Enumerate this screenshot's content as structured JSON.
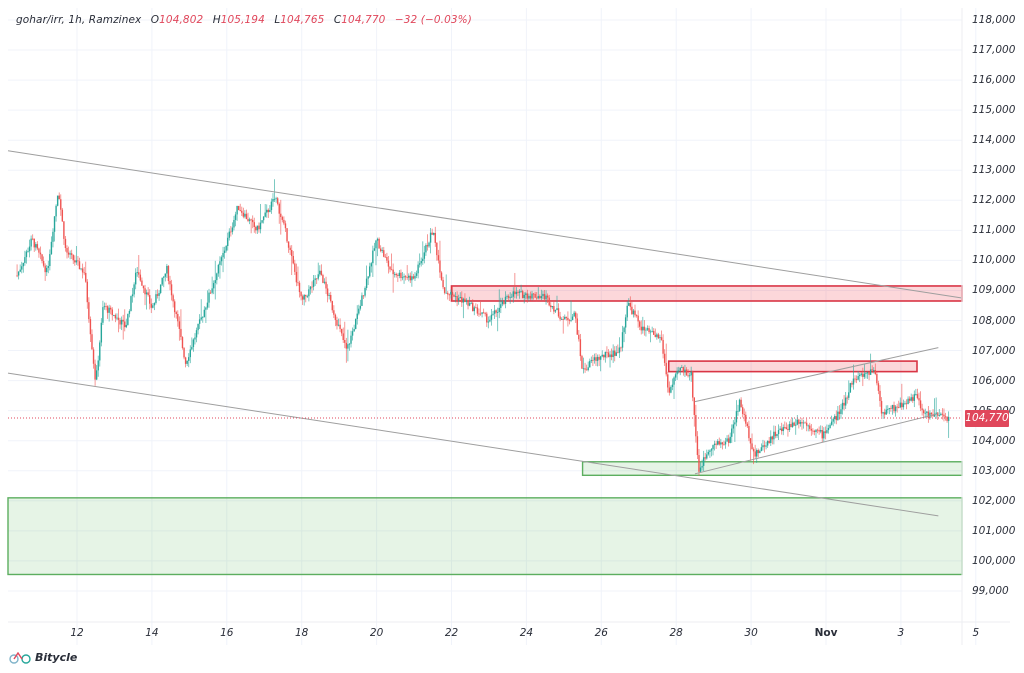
{
  "legend": {
    "symbol": "gohar/irr, 1h, Ramzinex",
    "open_label": "O",
    "open": "104,802",
    "high_label": "H",
    "high": "105,194",
    "low_label": "L",
    "low": "104,765",
    "close_label": "C",
    "close": "104,770",
    "change": "−32 (−0.03%)"
  },
  "price_tag": "104,770",
  "brand": {
    "name": "Bitycle",
    "icon": "bicycle-icon"
  },
  "colors": {
    "up": "#26a69a",
    "down": "#ef5350",
    "resistance_fill": "rgba(242,54,69,0.2)",
    "resistance_border": "#d93545",
    "support_fill": "rgba(76,175,80,0.14)",
    "support_border": "#5cae5f",
    "trendline": "#9e9e9e",
    "last_price": "#e0475b",
    "grid": "#f0f3fa"
  },
  "y_axis": {
    "ticks": [
      "118,000",
      "117,000",
      "116,000",
      "115,000",
      "114,000",
      "113,000",
      "112,000",
      "111,000",
      "110,000",
      "109,000",
      "108,000",
      "107,000",
      "106,000",
      "105,000",
      "104,000",
      "103,000",
      "102,000",
      "101,000",
      "100,000",
      "99,000"
    ]
  },
  "x_axis": {
    "ticks": [
      {
        "label": "12",
        "month": false
      },
      {
        "label": "14",
        "month": false
      },
      {
        "label": "16",
        "month": false
      },
      {
        "label": "18",
        "month": false
      },
      {
        "label": "20",
        "month": false
      },
      {
        "label": "22",
        "month": false
      },
      {
        "label": "24",
        "month": false
      },
      {
        "label": "26",
        "month": false
      },
      {
        "label": "28",
        "month": false
      },
      {
        "label": "30",
        "month": false
      },
      {
        "label": "Nov",
        "month": true
      },
      {
        "label": "3",
        "month": false
      },
      {
        "label": "5",
        "month": false
      }
    ]
  },
  "chart_data": {
    "type": "candlestick",
    "title": "gohar/irr, 1h, Ramzinex",
    "interval": "1h",
    "exchange": "Ramzinex",
    "ylim": [
      98500,
      118300
    ],
    "x_ticks": [
      "12",
      "14",
      "16",
      "18",
      "20",
      "22",
      "24",
      "26",
      "28",
      "30",
      "Nov",
      "3",
      "5"
    ],
    "last": {
      "open": 104802,
      "high": 105194,
      "low": 104765,
      "close": 104770,
      "change": -32,
      "change_pct": -0.03
    },
    "price_path_approx": [
      {
        "date": "Oct 10.4",
        "price": 109500
      },
      {
        "date": "Oct 10.8",
        "price": 110700
      },
      {
        "date": "Oct 11.2",
        "price": 109600
      },
      {
        "date": "Oct 11.5",
        "price": 112400
      },
      {
        "date": "Oct 11.7",
        "price": 110300
      },
      {
        "date": "Oct 12.2",
        "price": 109600
      },
      {
        "date": "Oct 12.5",
        "price": 105900
      },
      {
        "date": "Oct 12.7",
        "price": 108500
      },
      {
        "date": "Oct 13.3",
        "price": 107800
      },
      {
        "date": "Oct 13.6",
        "price": 109700
      },
      {
        "date": "Oct 14.0",
        "price": 108400
      },
      {
        "date": "Oct 14.4",
        "price": 109700
      },
      {
        "date": "Oct 14.9",
        "price": 106600
      },
      {
        "date": "Oct 15.3",
        "price": 108000
      },
      {
        "date": "Oct 15.9",
        "price": 110200
      },
      {
        "date": "Oct 16.3",
        "price": 111800
      },
      {
        "date": "Oct 16.8",
        "price": 111000
      },
      {
        "date": "Oct 17.3",
        "price": 112100
      },
      {
        "date": "Oct 17.6",
        "price": 110800
      },
      {
        "date": "Oct 18.0",
        "price": 108600
      },
      {
        "date": "Oct 18.5",
        "price": 109600
      },
      {
        "date": "Oct 19.2",
        "price": 107000
      },
      {
        "date": "Oct 19.5",
        "price": 108200
      },
      {
        "date": "Oct 20.0",
        "price": 110700
      },
      {
        "date": "Oct 20.4",
        "price": 109600
      },
      {
        "date": "Oct 21.0",
        "price": 109400
      },
      {
        "date": "Oct 21.5",
        "price": 111000
      },
      {
        "date": "Oct 21.8",
        "price": 109000
      },
      {
        "date": "Oct 22.4",
        "price": 108600
      },
      {
        "date": "Oct 23.0",
        "price": 108000
      },
      {
        "date": "Oct 23.6",
        "price": 108900
      },
      {
        "date": "Oct 24.5",
        "price": 108800
      },
      {
        "date": "Oct 25.0",
        "price": 108000
      },
      {
        "date": "Oct 25.3",
        "price": 108200
      },
      {
        "date": "Oct 25.5",
        "price": 106300
      },
      {
        "date": "Oct 25.8",
        "price": 106700
      },
      {
        "date": "Oct 26.5",
        "price": 107000
      },
      {
        "date": "Oct 26.7",
        "price": 108600
      },
      {
        "date": "Oct 27.1",
        "price": 107700
      },
      {
        "date": "Oct 27.6",
        "price": 107400
      },
      {
        "date": "Oct 27.8",
        "price": 105600
      },
      {
        "date": "Oct 28.1",
        "price": 106400
      },
      {
        "date": "Oct 28.4",
        "price": 106200
      },
      {
        "date": "Oct 28.6",
        "price": 103000
      },
      {
        "date": "Oct 28.9",
        "price": 103800
      },
      {
        "date": "Oct 29.4",
        "price": 104000
      },
      {
        "date": "Oct 29.7",
        "price": 105300
      },
      {
        "date": "Oct 30.1",
        "price": 103500
      },
      {
        "date": "Oct 30.6",
        "price": 104200
      },
      {
        "date": "Oct 31.3",
        "price": 104700
      },
      {
        "date": "Oct 31.9",
        "price": 104200
      },
      {
        "date": "Nov 1.4",
        "price": 105000
      },
      {
        "date": "Nov 1.7",
        "price": 106000
      },
      {
        "date": "Nov 2.3",
        "price": 106400
      },
      {
        "date": "Nov 2.5",
        "price": 104900
      },
      {
        "date": "Nov 3.0",
        "price": 105200
      },
      {
        "date": "Nov 3.4",
        "price": 105500
      },
      {
        "date": "Nov 3.6",
        "price": 104900
      },
      {
        "date": "Nov 4.3",
        "price": 104770
      }
    ],
    "zones": [
      {
        "type": "resistance",
        "from": 108650,
        "to": 109150,
        "start": "Oct 22"
      },
      {
        "type": "resistance",
        "from": 106300,
        "to": 106650,
        "start": "Oct 27.8"
      },
      {
        "type": "support",
        "from": 102850,
        "to": 103300,
        "start": "Oct 25.5"
      },
      {
        "type": "support",
        "from": 99550,
        "to": 102100,
        "start": "Oct 10"
      }
    ],
    "trendlines": [
      {
        "name": "descending-channel-upper",
        "from": {
          "date": "Oct 10",
          "price": 113650
        },
        "to": {
          "date": "Nov 5",
          "price": 108750
        }
      },
      {
        "name": "descending-channel-lower",
        "from": {
          "date": "Oct 10",
          "price": 106250
        },
        "to": {
          "date": "Nov 4",
          "price": 101500
        }
      },
      {
        "name": "rising-channel-upper",
        "from": {
          "date": "Oct 28.5",
          "price": 105300
        },
        "to": {
          "date": "Nov 4",
          "price": 107100
        }
      },
      {
        "name": "rising-channel-lower",
        "from": {
          "date": "Oct 28.5",
          "price": 102900
        },
        "to": {
          "date": "Nov 4",
          "price": 104900
        }
      }
    ]
  }
}
